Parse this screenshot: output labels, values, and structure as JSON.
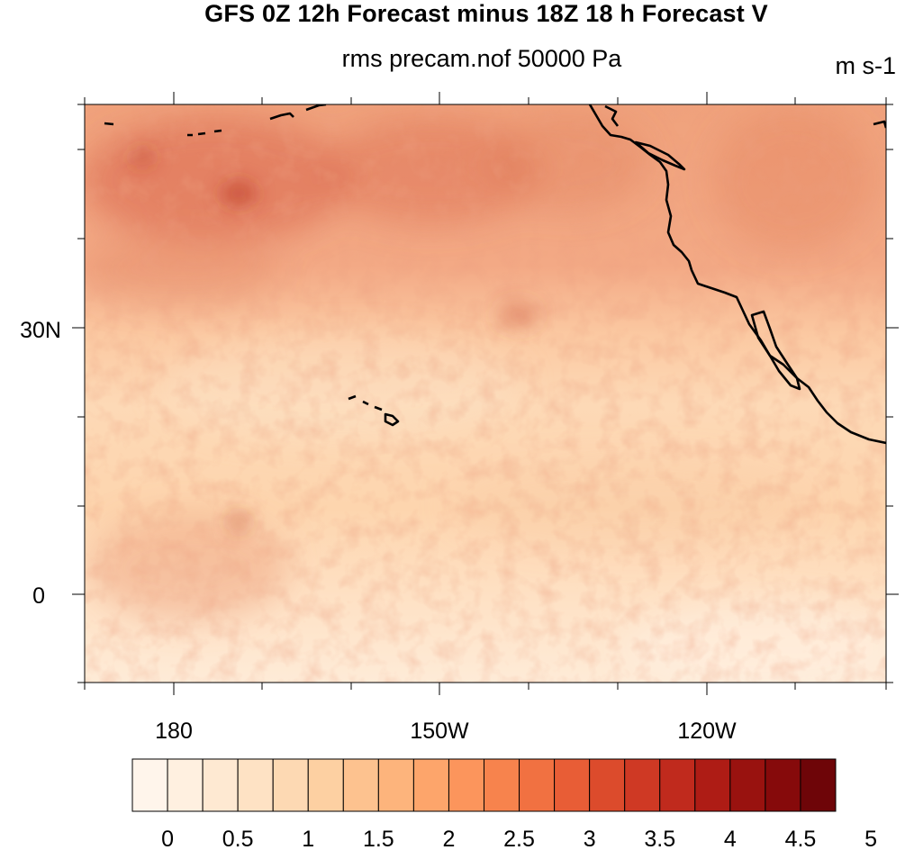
{
  "title": "GFS 0Z 12h Forecast minus 18Z 18 h Forecast V",
  "subtitle": "rms precam.nof 50000 Pa",
  "units": "m s-1",
  "lat_labels": [
    "30N",
    "0"
  ],
  "lon_labels": [
    "180",
    "150W",
    "120W"
  ],
  "colorbar": {
    "labels": [
      "0",
      "0.5",
      "1",
      "1.5",
      "2",
      "2.5",
      "3",
      "3.5",
      "4",
      "4.5",
      "5"
    ],
    "colors": [
      "#fff5eb",
      "#fff0e0",
      "#fee9d2",
      "#fee2c4",
      "#fdd9b3",
      "#fdd0a2",
      "#fdc28f",
      "#fdb47c",
      "#fda56b",
      "#fc955c",
      "#f7834d",
      "#f17141",
      "#e85d36",
      "#dc4b2c",
      "#cf3924",
      "#c02a1d",
      "#ae1c15",
      "#99120f",
      "#860a0b",
      "#6e0508"
    ]
  },
  "field_colors": {
    "background": "#fdd7b0",
    "low": "#fee8cf",
    "high": "#e47553",
    "peak": "#c83a2c"
  }
}
